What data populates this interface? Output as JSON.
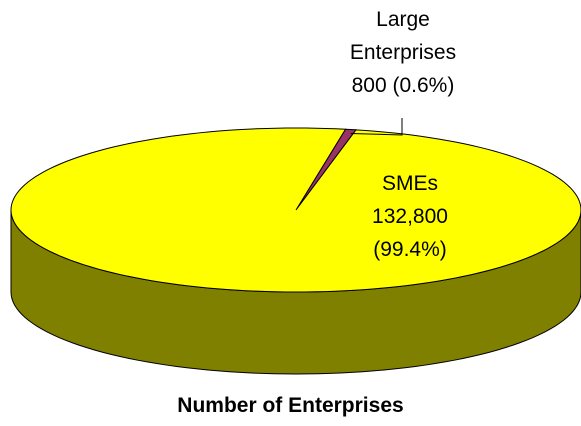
{
  "chart_data": {
    "type": "pie3d",
    "title": "Number of Enterprises",
    "categories": [
      "Large Enterprises",
      "SMEs"
    ],
    "values": [
      800,
      132800
    ],
    "value_labels": [
      "800 (0.6%)",
      "132,800 (99.4%)"
    ],
    "colors": [
      "#993366",
      "#ffff00"
    ]
  }
}
